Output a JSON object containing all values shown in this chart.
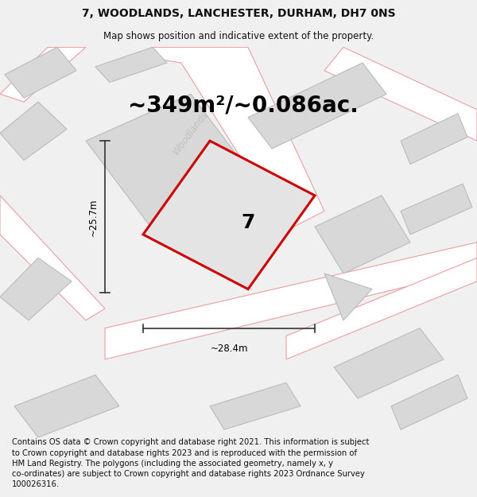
{
  "title": "7, WOODLANDS, LANCHESTER, DURHAM, DH7 0NS",
  "subtitle": "Map shows position and indicative extent of the property.",
  "area_text": "~349m²/~0.086ac.",
  "plot_number": "7",
  "width_label": "~28.4m",
  "height_label": "~25.7m",
  "street_label": "Woodlands",
  "footer_text": "Contains OS data © Crown copyright and database right 2021. This information is subject to Crown copyright and database rights 2023 and is reproduced with the permission of HM Land Registry. The polygons (including the associated geometry, namely x, y co-ordinates) are subject to Crown copyright and database rights 2023 Ordnance Survey 100026316.",
  "bg_color": "#f0f0f0",
  "map_bg": "#f0f0f0",
  "building_fill": "#d8d8d8",
  "building_edge": "#bbbbbb",
  "road_fill": "#ffffff",
  "road_color": "#e8a0a0",
  "plot_fill": "#e4e4e4",
  "plot_edge": "#cc0000",
  "title_fontsize": 10,
  "subtitle_fontsize": 8.5,
  "area_fontsize": 20,
  "plot_label_fontsize": 18,
  "footer_fontsize": 7.2,
  "street_label_color": "#c0c0c0",
  "dim_line_color": "#333333",
  "title_color": "#111111",
  "footer_color": "#111111"
}
